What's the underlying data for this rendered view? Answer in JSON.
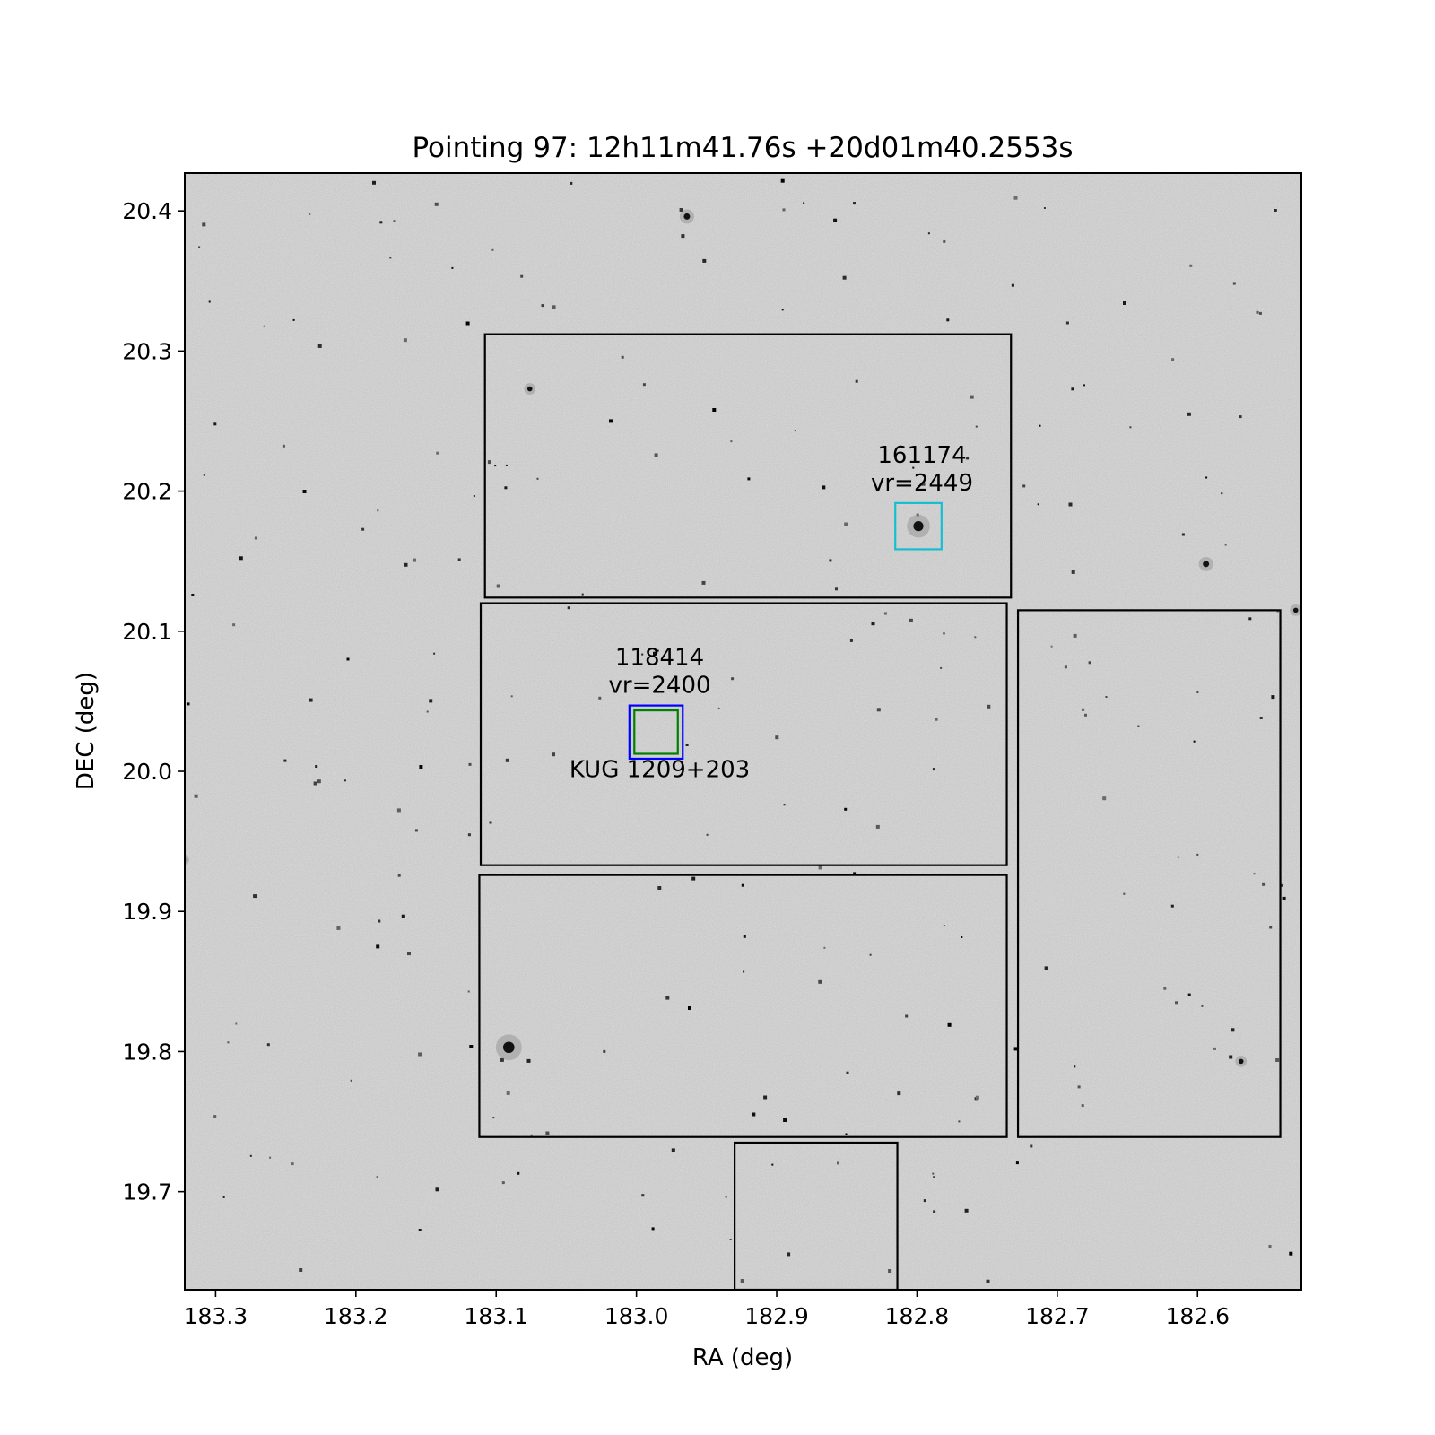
{
  "chart_data": {
    "type": "scatter",
    "title": "Pointing 97: 12h11m41.76s +20d01m40.2553s",
    "xlabel": "RA (deg)",
    "ylabel": "DEC (deg)",
    "xlim": [
      183.322,
      182.526
    ],
    "ylim": [
      19.63,
      20.427
    ],
    "grid": false,
    "background": "grayscale sky image",
    "xticks": [
      183.3,
      183.2,
      183.1,
      183.0,
      182.9,
      182.8,
      182.7,
      182.6
    ],
    "xtick_labels": [
      "183.3",
      "183.2",
      "183.1",
      "183.0",
      "182.9",
      "182.8",
      "182.7",
      "182.6"
    ],
    "yticks": [
      19.7,
      19.8,
      19.9,
      20.0,
      20.1,
      20.2,
      20.3,
      20.4
    ],
    "ytick_labels": [
      "19.7",
      "19.8",
      "19.9",
      "20.0",
      "20.1",
      "20.2",
      "20.3",
      "20.4"
    ],
    "footprints": [
      {
        "ra": [
          183.108,
          182.733
        ],
        "dec": [
          20.124,
          20.312
        ],
        "color": "#000000"
      },
      {
        "ra": [
          183.111,
          182.736
        ],
        "dec": [
          19.933,
          20.12
        ],
        "color": "#000000"
      },
      {
        "ra": [
          183.112,
          182.736
        ],
        "dec": [
          19.739,
          19.926
        ],
        "color": "#000000"
      },
      {
        "ra": [
          182.728,
          182.541
        ],
        "dec": [
          19.739,
          20.115
        ],
        "color": "#000000"
      },
      {
        "ra": [
          182.93,
          182.814
        ],
        "dec": [
          19.63,
          19.735
        ],
        "color": "#000000"
      }
    ],
    "sources": [
      {
        "ra": 182.799,
        "dec": 20.175,
        "box_halfwidth": 0.0165,
        "color": "#17becf",
        "labels": [
          "161174",
          "vr=2449"
        ],
        "label_position": "above"
      },
      {
        "ra": 182.986,
        "dec": 20.028,
        "box_halfwidth": 0.019,
        "color": "#0000ff",
        "labels": [
          "118414",
          "vr=2400"
        ],
        "label_position": "above"
      },
      {
        "ra": 182.986,
        "dec": 20.028,
        "box_halfwidth": 0.0155,
        "color": "#008000",
        "labels": [
          "KUG 1209+203"
        ],
        "label_position": "below"
      }
    ],
    "bright_stars": [
      {
        "ra": 183.091,
        "dec": 19.803,
        "size": 9
      },
      {
        "ra": 182.799,
        "dec": 20.175,
        "size": 8
      },
      {
        "ra": 182.964,
        "dec": 20.396,
        "size": 5
      },
      {
        "ra": 182.594,
        "dec": 20.148,
        "size": 5
      },
      {
        "ra": 183.076,
        "dec": 20.273,
        "size": 4
      },
      {
        "ra": 182.53,
        "dec": 20.115,
        "size": 4
      },
      {
        "ra": 182.569,
        "dec": 19.793,
        "size": 4
      },
      {
        "ra": 183.323,
        "dec": 19.937,
        "size": 4
      }
    ]
  }
}
